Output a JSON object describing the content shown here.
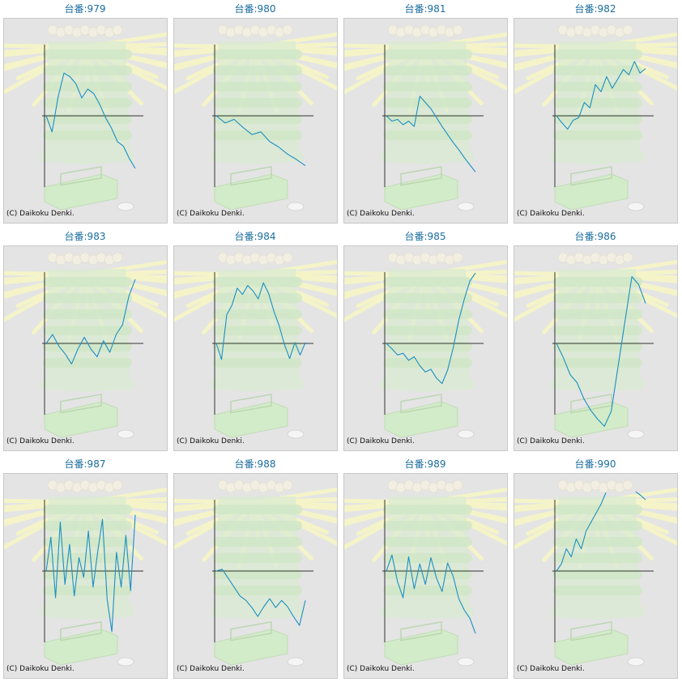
{
  "chart_data": [
    {
      "type": "line",
      "title": "台番:979",
      "credit": "(C) Daikoku Denki.",
      "values": [
        0,
        -1.8,
        2.1,
        4.8,
        4.4,
        3.6,
        2.0,
        3.0,
        2.5,
        1.3,
        -0.2,
        -1.4,
        -2.9,
        -3.4,
        -4.8,
        -5.9
      ]
    },
    {
      "type": "line",
      "title": "台番:980",
      "credit": "(C) Daikoku Denki.",
      "values": [
        0,
        -0.8,
        -0.4,
        -1.3,
        -2.1,
        -1.8,
        -2.9,
        -3.5,
        -4.3,
        -4.9,
        -5.6
      ]
    },
    {
      "type": "line",
      "title": "台番:981",
      "credit": "(C) Daikoku Denki.",
      "values": [
        0,
        -0.6,
        -0.4,
        -1.0,
        -0.6,
        -1.2,
        2.2,
        1.5,
        0.8,
        -0.2,
        -1.2,
        -2.1,
        -3.0,
        -3.8,
        -4.7,
        -5.5,
        -6.3
      ]
    },
    {
      "type": "line",
      "title": "台番:982",
      "credit": "(C) Daikoku Denki.",
      "values": [
        0,
        -0.8,
        -1.5,
        -0.5,
        -0.2,
        1.5,
        0.9,
        3.5,
        2.7,
        4.4,
        3.1,
        4.1,
        5.2,
        4.6,
        6.1,
        4.8,
        5.3
      ]
    },
    {
      "type": "line",
      "title": "台番:983",
      "credit": "(C) Daikoku Denki.",
      "values": [
        0,
        1.0,
        -0.3,
        -1.2,
        -2.3,
        -0.6,
        0.7,
        -0.6,
        -1.5,
        0.3,
        -1.0,
        1.0,
        2.1,
        5.3,
        7.2
      ]
    },
    {
      "type": "line",
      "title": "台番:984",
      "credit": "(C) Daikoku Denki.",
      "values": [
        0,
        -1.8,
        3.2,
        4.3,
        6.2,
        5.5,
        6.5,
        5.9,
        5.0,
        6.8,
        5.6,
        3.6,
        2.0,
        -0.1,
        -1.7,
        0.1,
        -1.3,
        0.1
      ]
    },
    {
      "type": "line",
      "title": "台番:985",
      "credit": "(C) Daikoku Denki.",
      "values": [
        0,
        -0.6,
        -1.3,
        -1.1,
        -1.9,
        -1.5,
        -2.5,
        -3.2,
        -2.9,
        -3.9,
        -4.5,
        -3.0,
        -0.5,
        2.6,
        5.0,
        7.0,
        7.9
      ]
    },
    {
      "type": "line",
      "title": "台番:986",
      "credit": "(C) Daikoku Denki.",
      "values": [
        0,
        -1.6,
        -3.5,
        -4.4,
        -6.2,
        -7.5,
        -8.5,
        -9.3,
        -7.6,
        -2.5,
        2.5,
        7.5,
        6.6,
        4.5
      ]
    },
    {
      "type": "line",
      "title": "台番:987",
      "credit": "(C) Daikoku Denki.",
      "values": [
        0,
        3.8,
        -3.0,
        5.5,
        -1.5,
        3.0,
        -2.8,
        1.5,
        -0.7,
        4.5,
        -1.8,
        2.2,
        5.8,
        -3.2,
        -6.8,
        2.1,
        -1.8,
        4.0,
        -2.2,
        6.3
      ]
    },
    {
      "type": "line",
      "title": "台番:988",
      "credit": "(C) Daikoku Denki.",
      "values": [
        0,
        0.2,
        -0.8,
        -1.8,
        -2.8,
        -3.3,
        -4.1,
        -5.1,
        -4.0,
        -3.1,
        -4.1,
        -3.3,
        -4.0,
        -5.1,
        -6.1,
        -3.3
      ]
    },
    {
      "type": "line",
      "title": "台番:989",
      "credit": "(C) Daikoku Denki.",
      "values": [
        0,
        1.8,
        -1.2,
        -3.0,
        1.6,
        -2.0,
        0.8,
        -1.5,
        1.5,
        -0.8,
        -2.3,
        0.9,
        -0.6,
        -3.1,
        -4.4,
        -5.3,
        -7.0
      ]
    },
    {
      "type": "line",
      "title": "台番:990",
      "credit": "(C) Daikoku Denki.",
      "values": [
        0,
        0.8,
        2.5,
        1.6,
        3.6,
        2.5,
        4.5,
        5.5,
        6.5,
        7.5,
        8.8,
        null,
        null,
        null,
        null,
        null,
        8.9,
        8.5,
        8.0
      ]
    }
  ]
}
